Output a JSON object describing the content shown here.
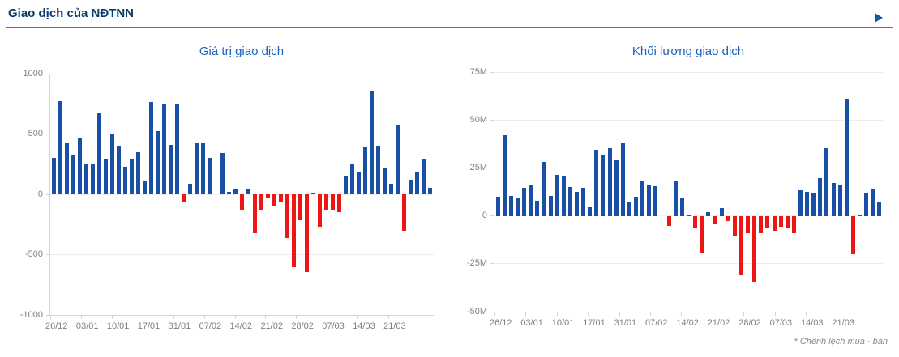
{
  "header": {
    "title": "Giao dịch của NĐTNN",
    "chevron_icon": "chevron-right"
  },
  "footnote": "* Chênh lệch mua - bán",
  "colors": {
    "positive_bar": "#1750a6",
    "negative_bar": "#ee1515",
    "accent_rule": "#e8432e",
    "header_text": "#0b3a70",
    "chart_title_text": "#1a61c0",
    "axis_text": "#808080",
    "gridline": "#ededed",
    "axis_line": "#c9d7e4"
  },
  "chart_data": [
    {
      "type": "bar",
      "title": "Giá trị giao dịch",
      "ylim": [
        -1000,
        1000
      ],
      "y_ticks": [
        1000,
        500,
        0,
        -500,
        -1000
      ],
      "y_tick_labels": [
        "1000",
        "500",
        "0",
        "-500",
        "-1000"
      ],
      "x_tick_labels": [
        "26/12",
        "03/01",
        "10/01",
        "17/01",
        "31/01",
        "07/02",
        "14/02",
        "21/02",
        "28/02",
        "07/03",
        "14/03",
        "21/03"
      ],
      "grid": true,
      "legend": "none",
      "values": [
        300,
        775,
        420,
        325,
        460,
        250,
        245,
        670,
        290,
        495,
        400,
        225,
        295,
        350,
        110,
        765,
        525,
        750,
        410,
        750,
        -60,
        85,
        420,
        425,
        305,
        0,
        345,
        22,
        48,
        -130,
        40,
        -325,
        -127,
        -26,
        -99,
        -66,
        -362,
        -607,
        -215,
        -647,
        7,
        -274,
        -127,
        -127,
        -147,
        154,
        253,
        187,
        390,
        860,
        403,
        214,
        88,
        577,
        -303,
        121,
        180,
        293,
        55
      ]
    },
    {
      "type": "bar",
      "title": "Khối lượng giao dịch",
      "ylim": [
        -50,
        75
      ],
      "y_ticks": [
        75,
        50,
        25,
        0,
        -25,
        -50
      ],
      "y_tick_labels": [
        "75M",
        "50M",
        "25M",
        "0",
        "-25M",
        "-50M"
      ],
      "x_tick_labels": [
        "26/12",
        "03/01",
        "10/01",
        "17/01",
        "31/01",
        "07/02",
        "14/02",
        "21/02",
        "28/02",
        "07/03",
        "14/03",
        "21/03"
      ],
      "grid": true,
      "legend": "none",
      "unit": "M",
      "values": [
        10,
        42,
        10.5,
        9.5,
        14.5,
        16,
        8,
        28,
        10.5,
        21.5,
        21,
        15,
        12.5,
        14.5,
        4.5,
        34.5,
        31.5,
        35.5,
        29,
        38,
        7,
        10,
        18,
        16,
        15.5,
        0,
        -5.3,
        18.5,
        9,
        0.5,
        -6.5,
        -19.8,
        2,
        -4.3,
        4,
        -2.9,
        -10.8,
        -30.8,
        -9.1,
        -34.2,
        -9.1,
        -6.5,
        -7.9,
        -5.8,
        -6.5,
        -9.1,
        13.3,
        12.5,
        12,
        19.8,
        35.3,
        17,
        16.3,
        61,
        -20.2,
        0.5,
        12.2,
        14.3,
        7.4
      ]
    }
  ]
}
